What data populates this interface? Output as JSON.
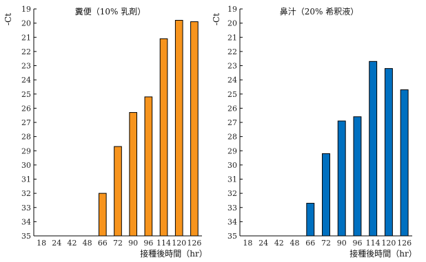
{
  "chart_data": [
    {
      "type": "bar",
      "title": "糞便（10% 乳剤）",
      "ylabel": "-Ct",
      "xlabel": "接種後時間（hr）",
      "categories": [
        "18",
        "24",
        "42",
        "48",
        "66",
        "72",
        "90",
        "96",
        "114",
        "120",
        "126"
      ],
      "values": [
        null,
        null,
        null,
        null,
        32,
        28.7,
        26.3,
        25.2,
        21.1,
        19.8,
        19.9
      ],
      "ylim": [
        19,
        35
      ],
      "y_inverted": true,
      "yticks": [
        19,
        20,
        21,
        22,
        23,
        24,
        25,
        26,
        27,
        28,
        29,
        30,
        31,
        32,
        33,
        34,
        35
      ],
      "bar_color": "#F7941D",
      "grid": false
    },
    {
      "type": "bar",
      "title": "鼻汁（20% 希釈液）",
      "ylabel": "-Ct",
      "xlabel": "接種後時間（hr）",
      "categories": [
        "18",
        "24",
        "42",
        "48",
        "66",
        "72",
        "90",
        "96",
        "114",
        "120",
        "126"
      ],
      "values": [
        null,
        null,
        null,
        null,
        32.7,
        29.2,
        26.9,
        26.6,
        22.7,
        23.2,
        24.7
      ],
      "ylim": [
        19,
        35
      ],
      "y_inverted": true,
      "yticks": [
        19,
        20,
        21,
        22,
        23,
        24,
        25,
        26,
        27,
        28,
        29,
        30,
        31,
        32,
        33,
        34,
        35
      ],
      "bar_color": "#0070C0",
      "grid": false
    }
  ]
}
